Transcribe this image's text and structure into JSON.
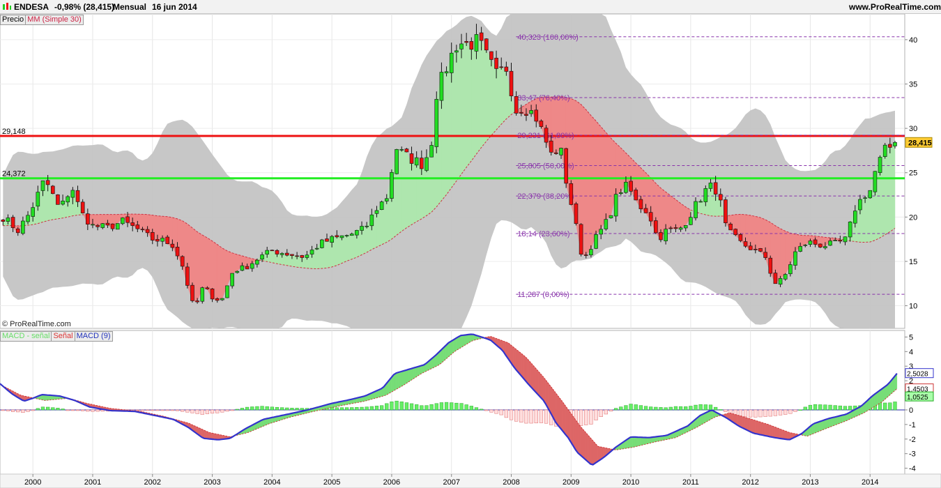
{
  "header": {
    "ticker": "ENDESA",
    "change": "-0,98% (28,415)",
    "period": "Mensual",
    "date": "16 jun 2014",
    "site": "www.ProRealTime.com"
  },
  "legend": {
    "price": "Precio",
    "ma": "MM (Simple 30)",
    "macd_hist": "MACD - señal",
    "macd_signal": "Señal",
    "macd": "MACD (9)"
  },
  "copyright": "© ProRealTime.com",
  "colors": {
    "up_candle": "#22dd22",
    "down_candle": "#ee1111",
    "red_level": "#ee1111",
    "green_level": "#22ee22",
    "fib_line": "#8833aa",
    "fib_text": "#8833aa",
    "macd_line": "#3333cc",
    "signal_line": "#cc3333",
    "band_fill": "#c4c4c4",
    "fill_up": "#aee6ae",
    "fill_down": "#ee8888"
  },
  "chart_data": [
    {
      "type": "candlestick",
      "title": "ENDESA",
      "y_ticks": [
        "40",
        "35",
        "30",
        "25",
        "20",
        "15",
        "10"
      ],
      "x_ticks": [
        "2000",
        "2001",
        "2002",
        "2003",
        "2004",
        "2005",
        "2006",
        "2007",
        "2008",
        "2009",
        "2010",
        "2011",
        "2012",
        "2013",
        "2014"
      ],
      "x_range": [
        1999.45,
        2014.58
      ],
      "ylim": [
        7.45,
        42.9
      ],
      "horizontal_levels": [
        {
          "label": "29,148",
          "value": 29.148,
          "color": "red"
        },
        {
          "label": "24,372",
          "value": 24.372,
          "color": "green"
        }
      ],
      "fibonacci": [
        {
          "label": "40,323 (100,00%)",
          "value": 40.323
        },
        {
          "label": "33,47 (76,40%)",
          "value": 33.47
        },
        {
          "label": "29,231 (61,80%)",
          "value": 29.231
        },
        {
          "label": "25,805 (50,00%)",
          "value": 25.805
        },
        {
          "label": "22,379 (38,20%)",
          "value": 22.379
        },
        {
          "label": "18,14 (23,60%)",
          "value": 18.14
        },
        {
          "label": "11,287 (0,00%)",
          "value": 11.287
        }
      ],
      "last_price": "28,415",
      "anchors": [
        [
          1999.5,
          20.0
        ],
        [
          1999.75,
          18.5
        ],
        [
          1999.95,
          20.5
        ],
        [
          2000.2,
          24.3
        ],
        [
          2000.45,
          20.8
        ],
        [
          2000.65,
          23.5
        ],
        [
          2000.8,
          20.5
        ],
        [
          2001.0,
          19.0
        ],
        [
          2001.25,
          18.8
        ],
        [
          2001.5,
          19.5
        ],
        [
          2001.75,
          18.6
        ],
        [
          2002.0,
          17.5
        ],
        [
          2002.2,
          17.3
        ],
        [
          2002.35,
          16.8
        ],
        [
          2002.5,
          14.5
        ],
        [
          2002.7,
          9.5
        ],
        [
          2002.85,
          12.2
        ],
        [
          2003.0,
          11.0
        ],
        [
          2003.15,
          10.5
        ],
        [
          2003.35,
          14.0
        ],
        [
          2003.55,
          14.3
        ],
        [
          2003.8,
          15.5
        ],
        [
          2004.0,
          16.2
        ],
        [
          2004.3,
          15.8
        ],
        [
          2004.55,
          15.5
        ],
        [
          2004.8,
          17.0
        ],
        [
          2005.0,
          17.5
        ],
        [
          2005.3,
          18.0
        ],
        [
          2005.55,
          18.7
        ],
        [
          2005.75,
          21.0
        ],
        [
          2005.95,
          22.5
        ],
        [
          2006.05,
          28.0
        ],
        [
          2006.2,
          27.0
        ],
        [
          2006.35,
          26.5
        ],
        [
          2006.5,
          26.0
        ],
        [
          2006.65,
          27.5
        ],
        [
          2006.75,
          34.0
        ],
        [
          2006.95,
          37.5
        ],
        [
          2007.1,
          39.7
        ],
        [
          2007.25,
          39.5
        ],
        [
          2007.45,
          39.8
        ],
        [
          2007.55,
          38.5
        ],
        [
          2007.75,
          36.0
        ],
        [
          2007.95,
          37.0
        ],
        [
          2008.05,
          32.0
        ],
        [
          2008.2,
          32.5
        ],
        [
          2008.4,
          31.5
        ],
        [
          2008.55,
          29.0
        ],
        [
          2008.7,
          26.5
        ],
        [
          2008.8,
          28.5
        ],
        [
          2008.92,
          24.0
        ],
        [
          2009.05,
          20.0
        ],
        [
          2009.2,
          15.0
        ],
        [
          2009.35,
          17.0
        ],
        [
          2009.6,
          19.5
        ],
        [
          2009.8,
          23.0
        ],
        [
          2009.95,
          23.5
        ],
        [
          2010.1,
          21.5
        ],
        [
          2010.3,
          20.5
        ],
        [
          2010.45,
          17.5
        ],
        [
          2010.6,
          18.5
        ],
        [
          2010.8,
          18.5
        ],
        [
          2010.95,
          19.8
        ],
        [
          2011.1,
          21.5
        ],
        [
          2011.3,
          23.5
        ],
        [
          2011.45,
          23.0
        ],
        [
          2011.6,
          18.5
        ],
        [
          2011.85,
          17.0
        ],
        [
          2012.0,
          16.5
        ],
        [
          2012.25,
          15.5
        ],
        [
          2012.4,
          12.5
        ],
        [
          2012.55,
          13.0
        ],
        [
          2012.75,
          16.0
        ],
        [
          2012.95,
          17.2
        ],
        [
          2013.2,
          16.8
        ],
        [
          2013.45,
          17.0
        ],
        [
          2013.6,
          17.5
        ],
        [
          2013.75,
          21.0
        ],
        [
          2013.9,
          22.5
        ],
        [
          2014.0,
          23.0
        ],
        [
          2014.1,
          25.5
        ],
        [
          2014.25,
          27.5
        ],
        [
          2014.45,
          28.4
        ]
      ],
      "ma30_start": 19.0
    },
    {
      "type": "line",
      "title": "MACD (9)",
      "y_ticks": [
        "5",
        "4",
        "3",
        "2",
        "1",
        "0",
        "-1",
        "-2",
        "-3",
        "-4"
      ],
      "ylim": [
        -4.4,
        5.45
      ],
      "series": [
        {
          "name": "MACD (9)",
          "anchors": [
            [
              1999.45,
              1.8
            ],
            [
              1999.65,
              1.1
            ],
            [
              1999.85,
              0.6
            ],
            [
              2000.0,
              0.8
            ],
            [
              2000.15,
              1.05
            ],
            [
              2000.45,
              0.95
            ],
            [
              2000.7,
              0.65
            ],
            [
              2000.95,
              0.2
            ],
            [
              2001.3,
              -0.05
            ],
            [
              2001.7,
              -0.1
            ],
            [
              2002.0,
              -0.35
            ],
            [
              2002.35,
              -0.65
            ],
            [
              2002.6,
              -1.2
            ],
            [
              2002.85,
              -1.95
            ],
            [
              2003.1,
              -2.05
            ],
            [
              2003.3,
              -1.95
            ],
            [
              2003.55,
              -1.3
            ],
            [
              2003.85,
              -0.65
            ],
            [
              2004.2,
              -0.35
            ],
            [
              2004.6,
              0.0
            ],
            [
              2005.0,
              0.45
            ],
            [
              2005.3,
              0.7
            ],
            [
              2005.55,
              0.95
            ],
            [
              2005.85,
              1.5
            ],
            [
              2006.05,
              2.5
            ],
            [
              2006.3,
              2.8
            ],
            [
              2006.55,
              3.1
            ],
            [
              2006.75,
              3.8
            ],
            [
              2006.95,
              4.6
            ],
            [
              2007.15,
              5.1
            ],
            [
              2007.35,
              5.2
            ],
            [
              2007.65,
              4.8
            ],
            [
              2007.85,
              4.1
            ],
            [
              2008.05,
              2.9
            ],
            [
              2008.3,
              1.7
            ],
            [
              2008.55,
              0.6
            ],
            [
              2008.75,
              -0.9
            ],
            [
              2008.95,
              -1.9
            ],
            [
              2009.1,
              -2.9
            ],
            [
              2009.35,
              -3.8
            ],
            [
              2009.55,
              -3.25
            ],
            [
              2009.75,
              -2.55
            ],
            [
              2010.0,
              -1.85
            ],
            [
              2010.3,
              -1.9
            ],
            [
              2010.6,
              -1.75
            ],
            [
              2010.95,
              -1.1
            ],
            [
              2011.15,
              -0.4
            ],
            [
              2011.35,
              0.0
            ],
            [
              2011.6,
              -0.55
            ],
            [
              2011.8,
              -1.1
            ],
            [
              2012.05,
              -1.6
            ],
            [
              2012.4,
              -1.9
            ],
            [
              2012.65,
              -2.05
            ],
            [
              2012.85,
              -1.65
            ],
            [
              2013.05,
              -0.95
            ],
            [
              2013.3,
              -0.6
            ],
            [
              2013.6,
              -0.3
            ],
            [
              2013.85,
              0.25
            ],
            [
              2014.05,
              1.0
            ],
            [
              2014.3,
              1.75
            ],
            [
              2014.45,
              2.5
            ]
          ]
        },
        {
          "name": "Señal",
          "anchors": [
            [
              1999.45,
              1.75
            ],
            [
              1999.8,
              1.0
            ],
            [
              2000.2,
              0.65
            ],
            [
              2000.6,
              0.8
            ],
            [
              2000.9,
              0.45
            ],
            [
              2001.3,
              0.1
            ],
            [
              2001.8,
              -0.1
            ],
            [
              2002.2,
              -0.45
            ],
            [
              2002.6,
              -0.9
            ],
            [
              2002.95,
              -1.55
            ],
            [
              2003.3,
              -1.85
            ],
            [
              2003.6,
              -1.55
            ],
            [
              2003.95,
              -0.95
            ],
            [
              2004.3,
              -0.5
            ],
            [
              2004.7,
              -0.1
            ],
            [
              2005.1,
              0.25
            ],
            [
              2005.55,
              0.6
            ],
            [
              2005.9,
              1.0
            ],
            [
              2006.2,
              1.7
            ],
            [
              2006.5,
              2.5
            ],
            [
              2006.8,
              3.1
            ],
            [
              2007.05,
              4.0
            ],
            [
              2007.35,
              4.75
            ],
            [
              2007.65,
              5.05
            ],
            [
              2007.95,
              4.6
            ],
            [
              2008.25,
              3.6
            ],
            [
              2008.55,
              2.2
            ],
            [
              2008.85,
              0.6
            ],
            [
              2009.15,
              -1.1
            ],
            [
              2009.45,
              -2.5
            ],
            [
              2009.75,
              -2.75
            ],
            [
              2010.05,
              -2.55
            ],
            [
              2010.4,
              -2.2
            ],
            [
              2010.75,
              -1.9
            ],
            [
              2011.1,
              -1.2
            ],
            [
              2011.4,
              -0.5
            ],
            [
              2011.65,
              -0.2
            ],
            [
              2011.95,
              -0.55
            ],
            [
              2012.3,
              -1.0
            ],
            [
              2012.65,
              -1.55
            ],
            [
              2012.95,
              -1.8
            ],
            [
              2013.25,
              -1.3
            ],
            [
              2013.6,
              -0.75
            ],
            [
              2013.9,
              -0.2
            ],
            [
              2014.2,
              0.55
            ],
            [
              2014.45,
              1.45
            ]
          ]
        }
      ],
      "last_values": [
        "2,5028",
        "1,4503",
        "1,0525"
      ]
    }
  ]
}
